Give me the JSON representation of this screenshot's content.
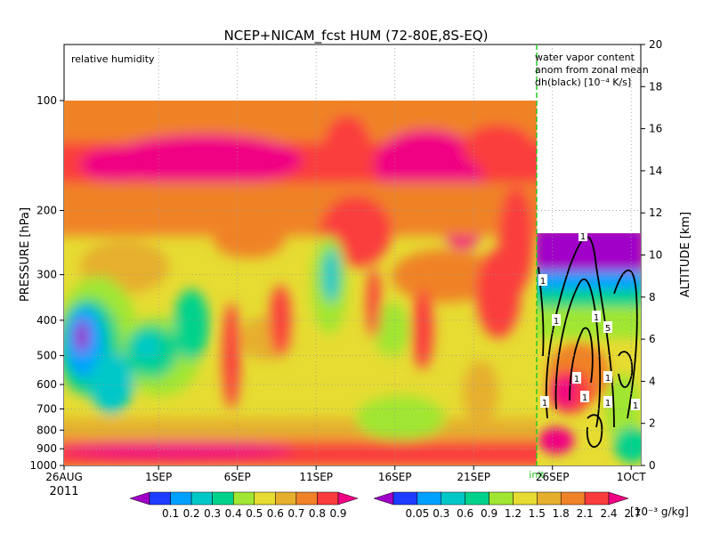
{
  "chart_data": [
    {
      "type": "heatmap",
      "title": "NCEP+NICAM_fcst HUM (72-80E,8S-EQ)",
      "panel_label": "relative humidity",
      "ylabel": "PRESSURE [hPa]",
      "y2label": "ALTITUDE [km]",
      "x_ticks": [
        "26AUG",
        "1SEP",
        "6SEP",
        "11SEP",
        "16SEP",
        "21SEP",
        "26SEP",
        "1OCT"
      ],
      "x_year": "2011",
      "y_ticks": [
        "100",
        "200",
        "300",
        "400",
        "500",
        "600",
        "700",
        "800",
        "900",
        "1000"
      ],
      "y_tick_values": [
        100,
        200,
        300,
        400,
        500,
        600,
        700,
        800,
        900,
        1000
      ],
      "y2_ticks": [
        "0",
        "2",
        "4",
        "6",
        "8",
        "10",
        "12",
        "14",
        "16",
        "18",
        "20"
      ],
      "ylim": [
        1000,
        100
      ],
      "y2lim": [
        0,
        20
      ],
      "log_scale_y": true,
      "grid": true,
      "init_label": "init",
      "colorbar": {
        "levels": [
          "0.1",
          "0.2",
          "0.3",
          "0.4",
          "0.5",
          "0.6",
          "0.7",
          "0.8",
          "0.9"
        ],
        "colors": [
          "#a000c8",
          "#1e3cff",
          "#00a0ff",
          "#00c8c8",
          "#00d28c",
          "#a0e632",
          "#e6dc32",
          "#e6af2d",
          "#f08228",
          "#fa3c3c",
          "#f00082"
        ]
      }
    },
    {
      "type": "heatmap",
      "panel_label_lines": [
        "water vapor content",
        "anom from zonal mean",
        "dh(black) [10⁻⁴ K/s]"
      ],
      "contour_labels": [
        "1",
        "1",
        "5",
        "1",
        "1",
        "1",
        "1",
        "1",
        "1",
        "1",
        "1"
      ],
      "colorbar": {
        "levels": [
          "0.05",
          "0.3",
          "0.6",
          "0.9",
          "1.2",
          "1.5",
          "1.8",
          "2.1",
          "2.4",
          "2.7"
        ],
        "unit": "[10⁻³ g/kg]",
        "colors": [
          "#a000c8",
          "#1e3cff",
          "#00a0ff",
          "#00c8c8",
          "#00d28c",
          "#a0e632",
          "#e6dc32",
          "#e6af2d",
          "#f08228",
          "#fa3c3c",
          "#f00082"
        ]
      }
    }
  ]
}
